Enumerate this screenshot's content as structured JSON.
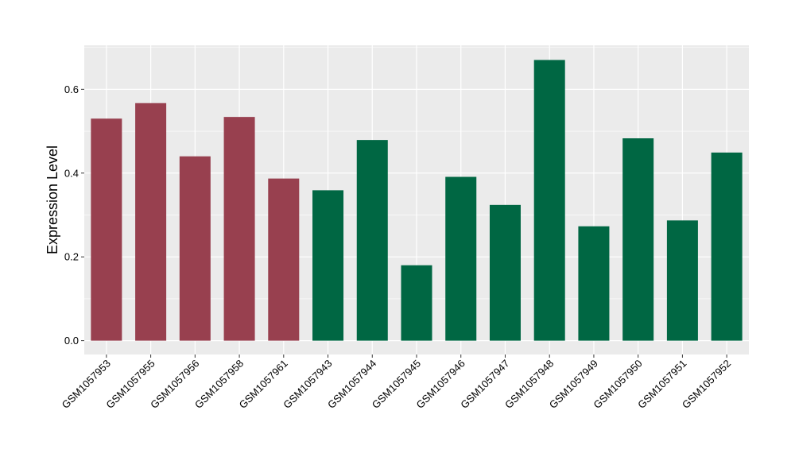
{
  "chart_data": {
    "type": "bar",
    "title": "",
    "xlabel": "",
    "ylabel": "Expression Level",
    "ylim": [
      -0.033,
      0.705
    ],
    "yticks": [
      0.0,
      0.2,
      0.4,
      0.6
    ],
    "ytick_labels": [
      "0.0",
      "0.2",
      "0.4",
      "0.6"
    ],
    "grid": true,
    "legend": "none",
    "categories": [
      "GSM1057953",
      "GSM1057955",
      "GSM1057956",
      "GSM1057958",
      "GSM1057961",
      "GSM1057943",
      "GSM1057944",
      "GSM1057945",
      "GSM1057946",
      "GSM1057947",
      "GSM1057948",
      "GSM1057949",
      "GSM1057950",
      "GSM1057951",
      "GSM1057952"
    ],
    "values": [
      0.53,
      0.567,
      0.44,
      0.534,
      0.387,
      0.359,
      0.479,
      0.18,
      0.391,
      0.324,
      0.67,
      0.273,
      0.483,
      0.287,
      0.449
    ],
    "groups": [
      "A",
      "A",
      "A",
      "A",
      "A",
      "B",
      "B",
      "B",
      "B",
      "B",
      "B",
      "B",
      "B",
      "B",
      "B"
    ],
    "colors": {
      "A": "#98404f",
      "B": "#006743",
      "panel_bg": "#ebebeb",
      "grid_major": "#ffffff",
      "text": "#000000",
      "tick_text": "#4d4d4d"
    }
  }
}
